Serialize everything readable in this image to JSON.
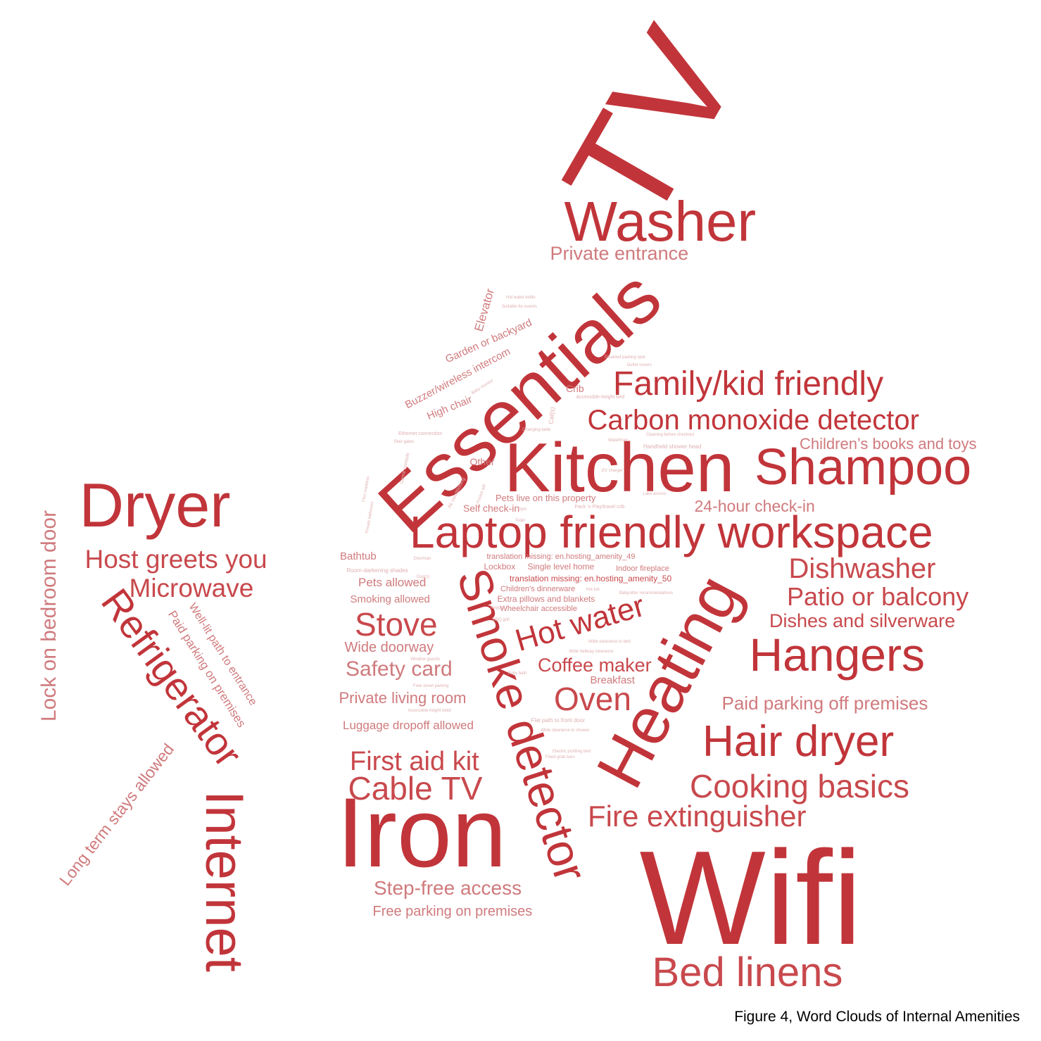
{
  "caption": "Figure 4, Word Clouds of Internal Amenities",
  "colors": {
    "strong": "#c1353a",
    "medium": "#c8494d",
    "light": "#d07a7d",
    "faint": "#e0b0b2"
  },
  "words": [
    {
      "text": "TV",
      "tone": "strong"
    },
    {
      "text": "Washer",
      "tone": "strong"
    },
    {
      "text": "Private entrance",
      "tone": "light"
    },
    {
      "text": "Essentials",
      "tone": "strong"
    },
    {
      "text": "Family/kid friendly",
      "tone": "strong"
    },
    {
      "text": "Carbon monoxide detector",
      "tone": "strong"
    },
    {
      "text": "Children’s books and toys",
      "tone": "light"
    },
    {
      "text": "Kitchen",
      "tone": "strong"
    },
    {
      "text": "Shampoo",
      "tone": "strong"
    },
    {
      "text": "24-hour check-in",
      "tone": "light"
    },
    {
      "text": "Laptop friendly workspace",
      "tone": "strong"
    },
    {
      "text": "Dryer",
      "tone": "strong"
    },
    {
      "text": "Host greets you",
      "tone": "medium"
    },
    {
      "text": "Microwave",
      "tone": "medium"
    },
    {
      "text": "Lock on bedroom door",
      "tone": "light"
    },
    {
      "text": "Refrigerator",
      "tone": "strong"
    },
    {
      "text": "Well-lit path to entrance",
      "tone": "light"
    },
    {
      "text": "Paid parking on premises",
      "tone": "light"
    },
    {
      "text": "Long term stays allowed",
      "tone": "light"
    },
    {
      "text": "Internet",
      "tone": "strong"
    },
    {
      "text": "Dishwasher",
      "tone": "medium"
    },
    {
      "text": "Patio or balcony",
      "tone": "medium"
    },
    {
      "text": "Dishes and silverware",
      "tone": "medium"
    },
    {
      "text": "Hangers",
      "tone": "strong"
    },
    {
      "text": "Paid parking off premises",
      "tone": "light"
    },
    {
      "text": "Hair dryer",
      "tone": "strong"
    },
    {
      "text": "Cooking basics",
      "tone": "medium"
    },
    {
      "text": "Fire extinguisher",
      "tone": "medium"
    },
    {
      "text": "Wifi",
      "tone": "strong"
    },
    {
      "text": "Bed linens",
      "tone": "medium"
    },
    {
      "text": "Heating",
      "tone": "strong"
    },
    {
      "text": "Smoke detector",
      "tone": "strong"
    },
    {
      "text": "Hot water",
      "tone": "strong"
    },
    {
      "text": "Coffee maker",
      "tone": "medium"
    },
    {
      "text": "Breakfast",
      "tone": "light"
    },
    {
      "text": "Oven",
      "tone": "medium"
    },
    {
      "text": "Iron",
      "tone": "strong"
    },
    {
      "text": "Cable TV",
      "tone": "medium"
    },
    {
      "text": "First aid kit",
      "tone": "medium"
    },
    {
      "text": "Step-free access",
      "tone": "light"
    },
    {
      "text": "Free parking on premises",
      "tone": "light"
    },
    {
      "text": "Stove",
      "tone": "medium"
    },
    {
      "text": "Wide doorway",
      "tone": "light"
    },
    {
      "text": "Safety card",
      "tone": "light"
    },
    {
      "text": "Private living room",
      "tone": "light"
    },
    {
      "text": "Luggage dropoff allowed",
      "tone": "light"
    },
    {
      "text": "Bathtub",
      "tone": "light"
    },
    {
      "text": "Pets allowed",
      "tone": "light"
    },
    {
      "text": "Smoking allowed",
      "tone": "light"
    },
    {
      "text": "Elevator",
      "tone": "light"
    },
    {
      "text": "Garden or backyard",
      "tone": "light"
    },
    {
      "text": "Buzzer/wireless intercom",
      "tone": "light"
    },
    {
      "text": "High chair",
      "tone": "light"
    },
    {
      "text": "Crib",
      "tone": "light"
    },
    {
      "text": "Other",
      "tone": "light"
    },
    {
      "text": "Pets live on this property",
      "tone": "light"
    },
    {
      "text": "Self check-in",
      "tone": "light"
    },
    {
      "text": "translation missing: en.hosting_amenity_49",
      "tone": "light"
    },
    {
      "text": "translation missing: en.hosting_amenity_50",
      "tone": "medium"
    },
    {
      "text": "Lockbox",
      "tone": "light"
    },
    {
      "text": "Single level home",
      "tone": "light"
    },
    {
      "text": "Indoor fireplace",
      "tone": "light"
    },
    {
      "text": "Children’s dinnerware",
      "tone": "light"
    },
    {
      "text": "Extra pillows and blankets",
      "tone": "light"
    },
    {
      "text": "Wheelchair accessible",
      "tone": "light"
    },
    {
      "text": "Room-darkening shades",
      "tone": "faint"
    },
    {
      "text": "Air conditioning",
      "tone": "faint"
    },
    {
      "text": "Handheld shower head",
      "tone": "faint"
    },
    {
      "text": "Accessible-height bed",
      "tone": "faint"
    },
    {
      "text": "Pack ’n Play/travel crib",
      "tone": "faint"
    },
    {
      "text": "Ethernet connection",
      "tone": "faint"
    },
    {
      "text": "Changing table",
      "tone": "faint"
    },
    {
      "text": "Cleaning before checkout",
      "tone": "faint"
    },
    {
      "text": "Waterfront",
      "tone": "faint"
    },
    {
      "text": "Game console",
      "tone": "faint"
    },
    {
      "text": "Baby monitor",
      "tone": "faint"
    },
    {
      "text": "Suitable for events",
      "tone": "faint"
    },
    {
      "text": "Hot water kettle",
      "tone": "faint"
    },
    {
      "text": "Disabled parking spot",
      "tone": "faint"
    },
    {
      "text": "Stair gates",
      "tone": "faint"
    },
    {
      "text": "Outlet covers",
      "tone": "faint"
    },
    {
      "text": "Babysitter recommendations",
      "tone": "faint"
    },
    {
      "text": "Wide clearance to bed",
      "tone": "faint"
    },
    {
      "text": "Wide hallway clearance",
      "tone": "faint"
    },
    {
      "text": "Free street parking",
      "tone": "faint"
    },
    {
      "text": "Window guards",
      "tone": "faint"
    },
    {
      "text": "BBQ grill",
      "tone": "faint"
    },
    {
      "text": "Baby bath",
      "tone": "faint"
    },
    {
      "text": "Accessible-height toilet",
      "tone": "faint"
    },
    {
      "text": "Flat path to front door",
      "tone": "faint"
    },
    {
      "text": "Wide clearance to shower",
      "tone": "faint"
    },
    {
      "text": "Electric profiling bed",
      "tone": "faint"
    },
    {
      "text": "Pocket wifi",
      "tone": "faint"
    },
    {
      "text": "Gym",
      "tone": "faint"
    },
    {
      "text": "Keypad",
      "tone": "faint"
    },
    {
      "text": "Doorman",
      "tone": "faint"
    },
    {
      "text": "EV charger",
      "tone": "faint"
    },
    {
      "text": "Lake access",
      "tone": "faint"
    },
    {
      "text": "Cat(s)",
      "tone": "faint"
    },
    {
      "text": "Dog(s)",
      "tone": "faint"
    },
    {
      "text": "Toilet",
      "tone": "faint"
    },
    {
      "text": "Hot tub",
      "tone": "faint"
    },
    {
      "text": "Private bathroom",
      "tone": "faint"
    },
    {
      "text": "Firm mattress",
      "tone": "faint"
    },
    {
      "text": "Fixed grab bars",
      "tone": "faint"
    }
  ]
}
